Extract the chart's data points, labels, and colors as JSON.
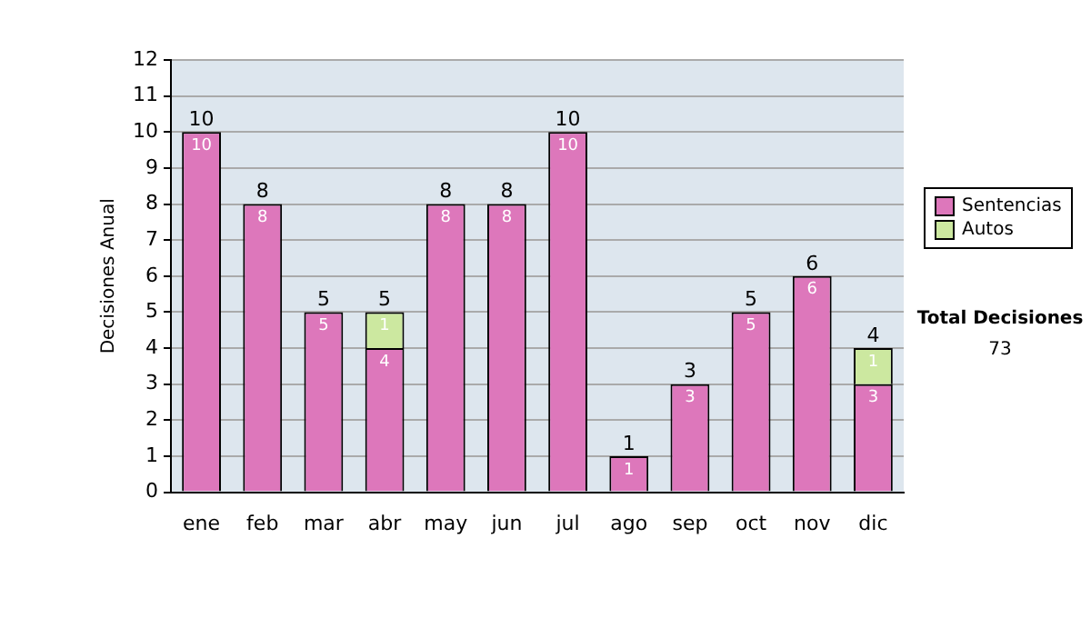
{
  "chart_data": {
    "type": "bar",
    "stacked": true,
    "ylabel": "Decisiones Anual",
    "categories": [
      "ene",
      "feb",
      "mar",
      "abr",
      "may",
      "jun",
      "jul",
      "ago",
      "sep",
      "oct",
      "nov",
      "dic"
    ],
    "series": [
      {
        "name": "Sentencias",
        "color": "#dd77bb",
        "values": [
          10,
          8,
          5,
          4,
          8,
          8,
          10,
          1,
          3,
          5,
          6,
          3
        ]
      },
      {
        "name": "Autos",
        "color": "#cce8a0",
        "values": [
          null,
          null,
          null,
          1,
          null,
          null,
          null,
          null,
          null,
          null,
          null,
          1
        ]
      }
    ],
    "ylim": [
      0,
      12
    ],
    "yticks": [
      0,
      1,
      2,
      3,
      4,
      5,
      6,
      7,
      8,
      9,
      10,
      11,
      12
    ],
    "grid": "y",
    "legend": "right",
    "data_labels": true,
    "totals": [
      "10",
      "8",
      "5",
      "5",
      "8",
      "8",
      "10",
      "1",
      "3",
      "5",
      "6",
      "4"
    ],
    "annotations": [
      "Total Decisiones",
      "73"
    ]
  }
}
